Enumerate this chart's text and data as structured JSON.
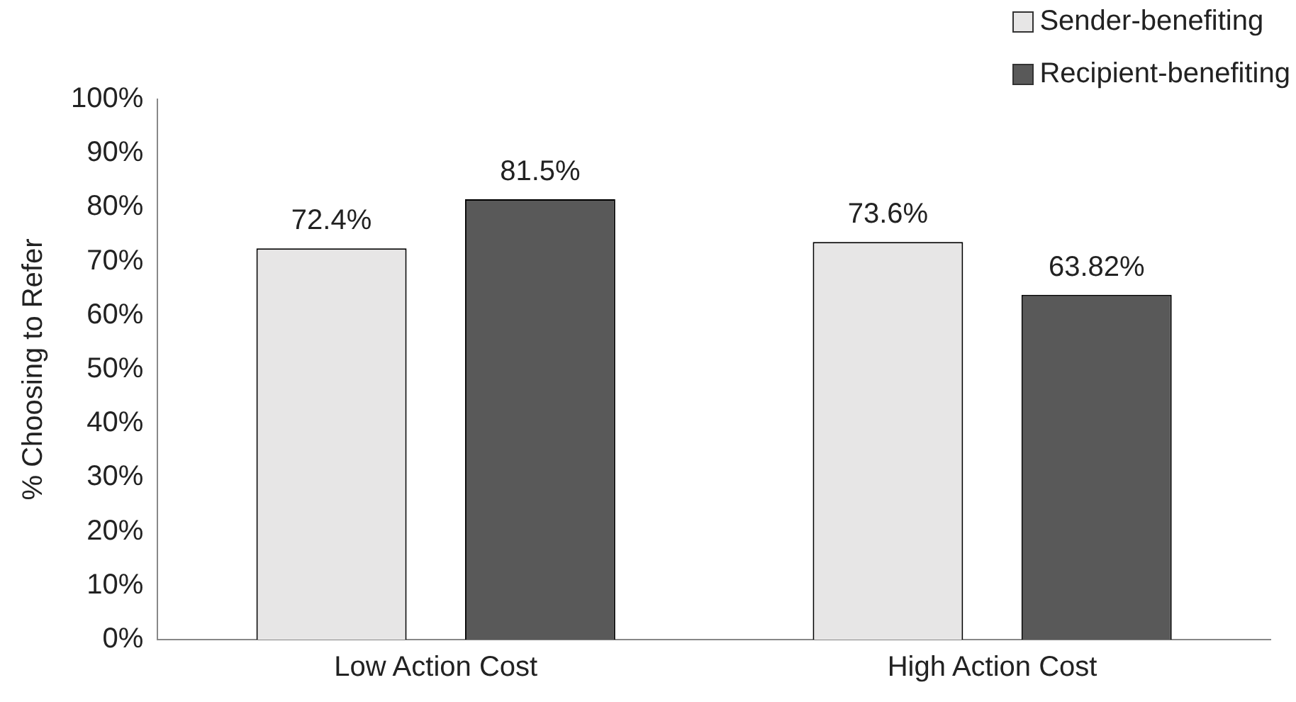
{
  "chart_data": {
    "type": "bar",
    "ylabel": "% Choosing to Refer",
    "categories": [
      "Low Action Cost",
      "High Action Cost"
    ],
    "series": [
      {
        "name": "Sender-benefiting",
        "color": "#e7e6e6",
        "values": [
          72.4,
          73.6
        ],
        "value_labels": [
          "72.4%",
          "73.6%"
        ]
      },
      {
        "name": "Recipient-benefiting",
        "color": "#595959",
        "values": [
          81.5,
          63.82
        ],
        "value_labels": [
          "81.5%",
          "63.82%"
        ]
      }
    ],
    "ylim": [
      0,
      100
    ],
    "yticks": [
      {
        "value": 0,
        "label": "0%"
      },
      {
        "value": 10,
        "label": "10%"
      },
      {
        "value": 20,
        "label": "20%"
      },
      {
        "value": 30,
        "label": "30%"
      },
      {
        "value": 40,
        "label": "40%"
      },
      {
        "value": 50,
        "label": "50%"
      },
      {
        "value": 60,
        "label": "60%"
      },
      {
        "value": 70,
        "label": "70%"
      },
      {
        "value": 80,
        "label": "80%"
      },
      {
        "value": 90,
        "label": "90%"
      },
      {
        "value": 100,
        "label": "100%"
      }
    ],
    "grid": false,
    "legend": "top right"
  }
}
